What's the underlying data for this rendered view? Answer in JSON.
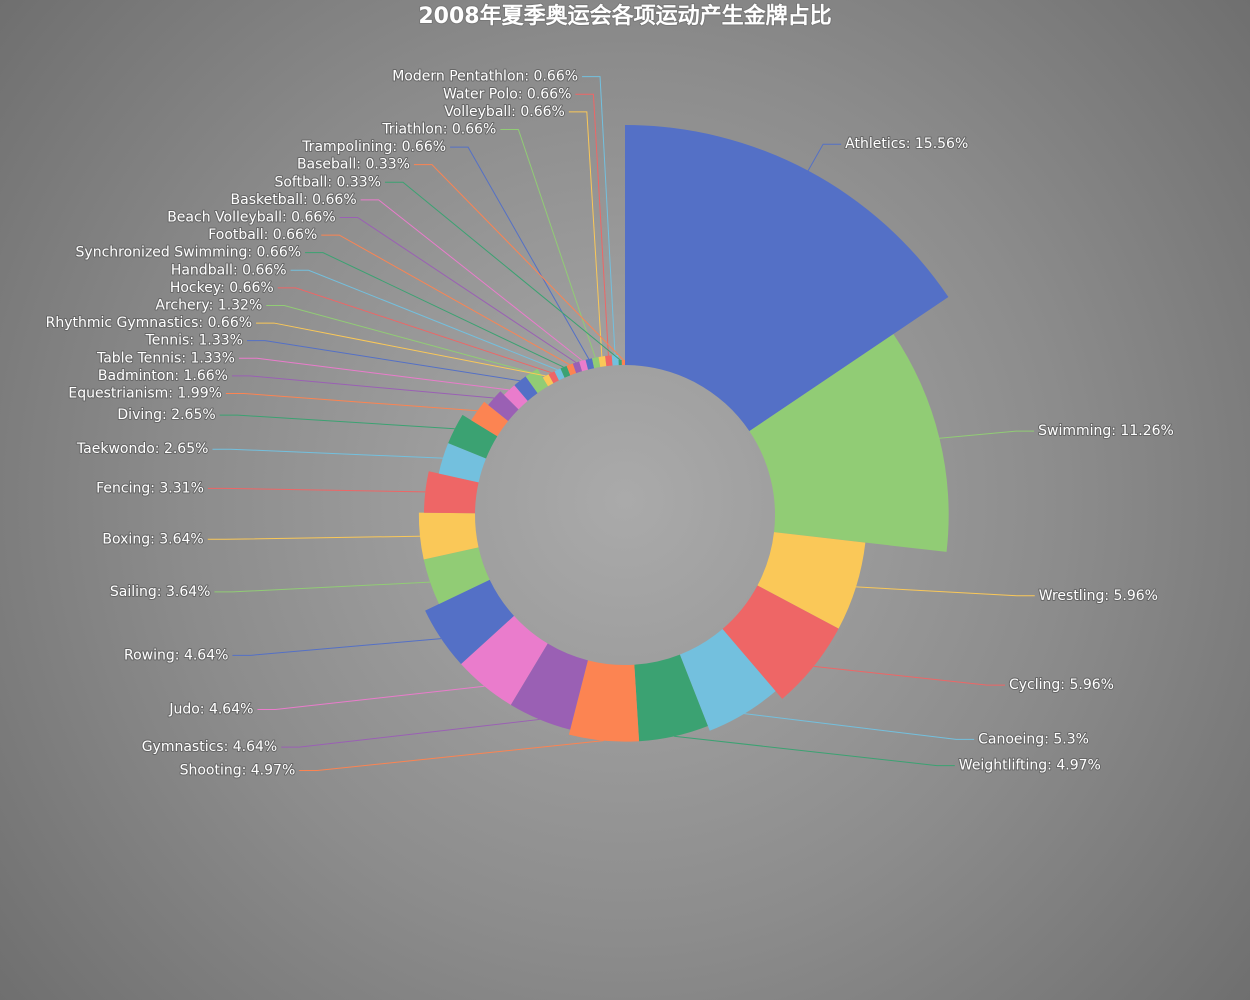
{
  "chart_data": {
    "type": "rose",
    "title": "2008年夏季奥运会各项运动产生金牌占比",
    "values": [
      15.56,
      11.26,
      5.96,
      5.96,
      5.3,
      4.97,
      4.97,
      4.64,
      4.64,
      4.64,
      3.64,
      3.64,
      3.31,
      2.65,
      2.65,
      1.99,
      1.66,
      1.33,
      1.33,
      1.32,
      0.66,
      0.66,
      0.66,
      0.66,
      0.66,
      0.66,
      0.66,
      0.66,
      0.66,
      0.66,
      0.66,
      0.66,
      0.33,
      0.33
    ],
    "value_labels": [
      "Athletics: 15.56%",
      "Swimming: 11.26%",
      "Wrestling: 5.96%",
      "Cycling: 5.96%",
      "Canoeing: 5.3%",
      "Weightlifting: 4.97%",
      "Shooting: 4.97%",
      "Gymnastics: 4.64%",
      "Judo: 4.64%",
      "Rowing: 4.64%",
      "Sailing: 3.64%",
      "Boxing: 3.64%",
      "Fencing: 3.31%",
      "Taekwondo: 2.65%",
      "Diving: 2.65%",
      "Equestrianism: 1.99%",
      "Badminton: 1.66%",
      "Table Tennis: 1.33%",
      "Tennis: 1.33%",
      "Archery: 1.32%",
      "Rhythmic Gymnastics: 0.66%",
      "Hockey: 0.66%",
      "Handball: 0.66%",
      "Synchronized Swimming: 0.66%",
      "Football: 0.66%",
      "Beach Volleyball: 0.66%",
      "Basketball: 0.66%",
      "Trampolining: 0.66%",
      "Triathlon: 0.66%",
      "Volleyball: 0.66%",
      "Water Polo: 0.66%",
      "Modern Pentathlon: 0.66%",
      "Softball: 0.33%",
      "Baseball: 0.33%"
    ],
    "colors": [
      "#5470c6",
      "#91cc75",
      "#fac858",
      "#ee6666",
      "#73c0de",
      "#3ba272",
      "#fc8452",
      "#9a60b4",
      "#ea7ccc"
    ]
  }
}
